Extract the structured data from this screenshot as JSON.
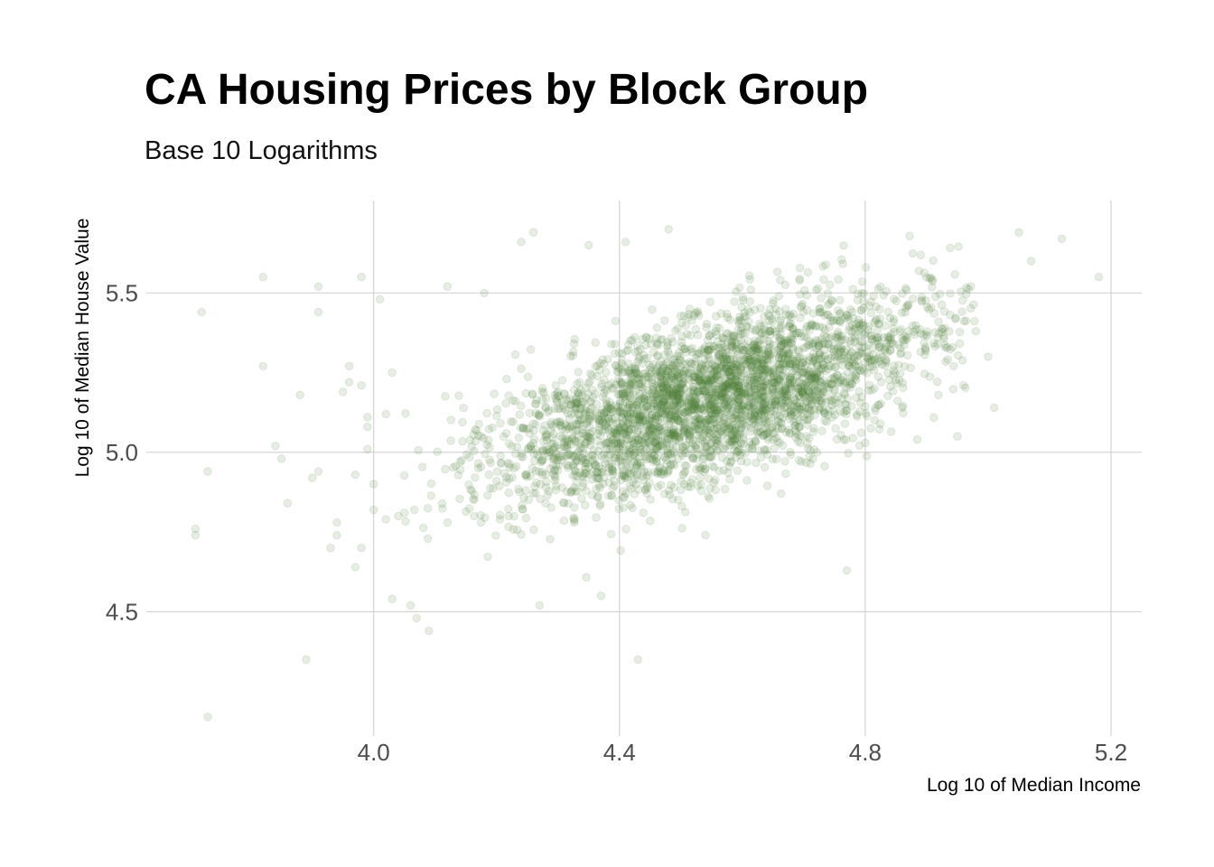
{
  "title": "CA Housing Prices by Block Group",
  "subtitle": "Base 10 Logarithms",
  "point_color": "#4f7f3a",
  "point_opacity": 0.14,
  "chart_data": {
    "type": "scatter",
    "title": "CA Housing Prices by Block Group",
    "subtitle": "Base 10 Logarithms",
    "xlabel": "Log 10 of Median Income",
    "ylabel": "Log 10 of Median House Value",
    "xlim": [
      3.63,
      5.25
    ],
    "ylim": [
      4.11,
      5.79
    ],
    "x_ticks": [
      4.0,
      4.4,
      4.8,
      5.2
    ],
    "x_tick_labels": [
      "4.0",
      "4.4",
      "4.8",
      "5.2"
    ],
    "y_ticks": [
      4.5,
      5.0,
      5.5
    ],
    "y_tick_labels": [
      "4.5",
      "5.0",
      "5.5"
    ],
    "grid": true,
    "points": [
      [
        3.73,
        4.17
      ],
      [
        3.72,
        5.44
      ],
      [
        3.73,
        4.94
      ],
      [
        3.71,
        4.74
      ],
      [
        3.71,
        4.76
      ],
      [
        3.82,
        5.27
      ],
      [
        3.82,
        5.55
      ],
      [
        3.84,
        5.02
      ],
      [
        3.85,
        4.98
      ],
      [
        3.86,
        4.84
      ],
      [
        3.88,
        5.18
      ],
      [
        3.89,
        4.35
      ],
      [
        3.9,
        4.92
      ],
      [
        3.91,
        4.94
      ],
      [
        3.91,
        5.44
      ],
      [
        3.91,
        5.52
      ],
      [
        3.93,
        4.7
      ],
      [
        3.94,
        4.74
      ],
      [
        3.94,
        4.78
      ],
      [
        3.95,
        5.19
      ],
      [
        3.96,
        5.22
      ],
      [
        3.96,
        5.27
      ],
      [
        3.97,
        4.64
      ],
      [
        3.97,
        4.93
      ],
      [
        3.98,
        4.7
      ],
      [
        3.98,
        5.55
      ],
      [
        3.98,
        5.21
      ],
      [
        3.99,
        5.01
      ],
      [
        3.99,
        5.08
      ],
      [
        3.99,
        5.11
      ],
      [
        4.0,
        4.9
      ],
      [
        4.0,
        4.82
      ],
      [
        4.01,
        5.48
      ],
      [
        4.02,
        4.79
      ],
      [
        4.02,
        5.12
      ],
      [
        4.03,
        5.25
      ],
      [
        4.03,
        4.54
      ],
      [
        4.04,
        4.8
      ],
      [
        4.05,
        4.81
      ],
      [
        4.06,
        4.52
      ],
      [
        4.07,
        4.48
      ],
      [
        4.09,
        4.44
      ],
      [
        4.12,
        5.52
      ],
      [
        4.18,
        5.5
      ],
      [
        4.24,
        5.66
      ],
      [
        4.26,
        5.69
      ],
      [
        4.27,
        4.52
      ],
      [
        4.37,
        4.55
      ],
      [
        4.43,
        4.35
      ],
      [
        4.54,
        4.74
      ],
      [
        4.77,
        4.63
      ],
      [
        4.8,
        5.03
      ],
      [
        4.86,
        5.14
      ],
      [
        4.96,
        5.21
      ],
      [
        5.0,
        5.3
      ],
      [
        5.01,
        5.14
      ],
      [
        5.05,
        5.69
      ],
      [
        5.07,
        5.6
      ],
      [
        5.12,
        5.67
      ],
      [
        5.18,
        5.55
      ],
      [
        4.41,
        5.66
      ],
      [
        4.35,
        5.65
      ],
      [
        4.48,
        5.7
      ],
      [
        4.95,
        5.05
      ],
      [
        4.98,
        5.38
      ]
    ]
  }
}
